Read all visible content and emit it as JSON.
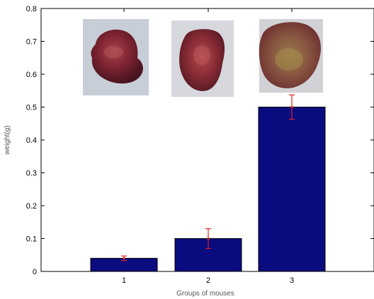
{
  "chart_data": {
    "type": "bar",
    "xlabel": "Groups of mouses",
    "ylabel": "weight(g)",
    "ylim": [
      0,
      0.8
    ],
    "yticks": [
      "0",
      "0.1",
      "0.2",
      "0.3",
      "0.4",
      "0.5",
      "0.6",
      "0.7",
      "0.8"
    ],
    "categories": [
      "1",
      "2",
      "3"
    ],
    "values": [
      0.04,
      0.1,
      0.5
    ],
    "errors": [
      0.007,
      0.03,
      0.037
    ],
    "bar_color": "#0b0b80",
    "error_color": "#dd2222",
    "insets": [
      {
        "category": "1",
        "subject": "excised tumor (small)"
      },
      {
        "category": "2",
        "subject": "excised tumor (medium)"
      },
      {
        "category": "3",
        "subject": "excised tumor (large)"
      }
    ]
  }
}
